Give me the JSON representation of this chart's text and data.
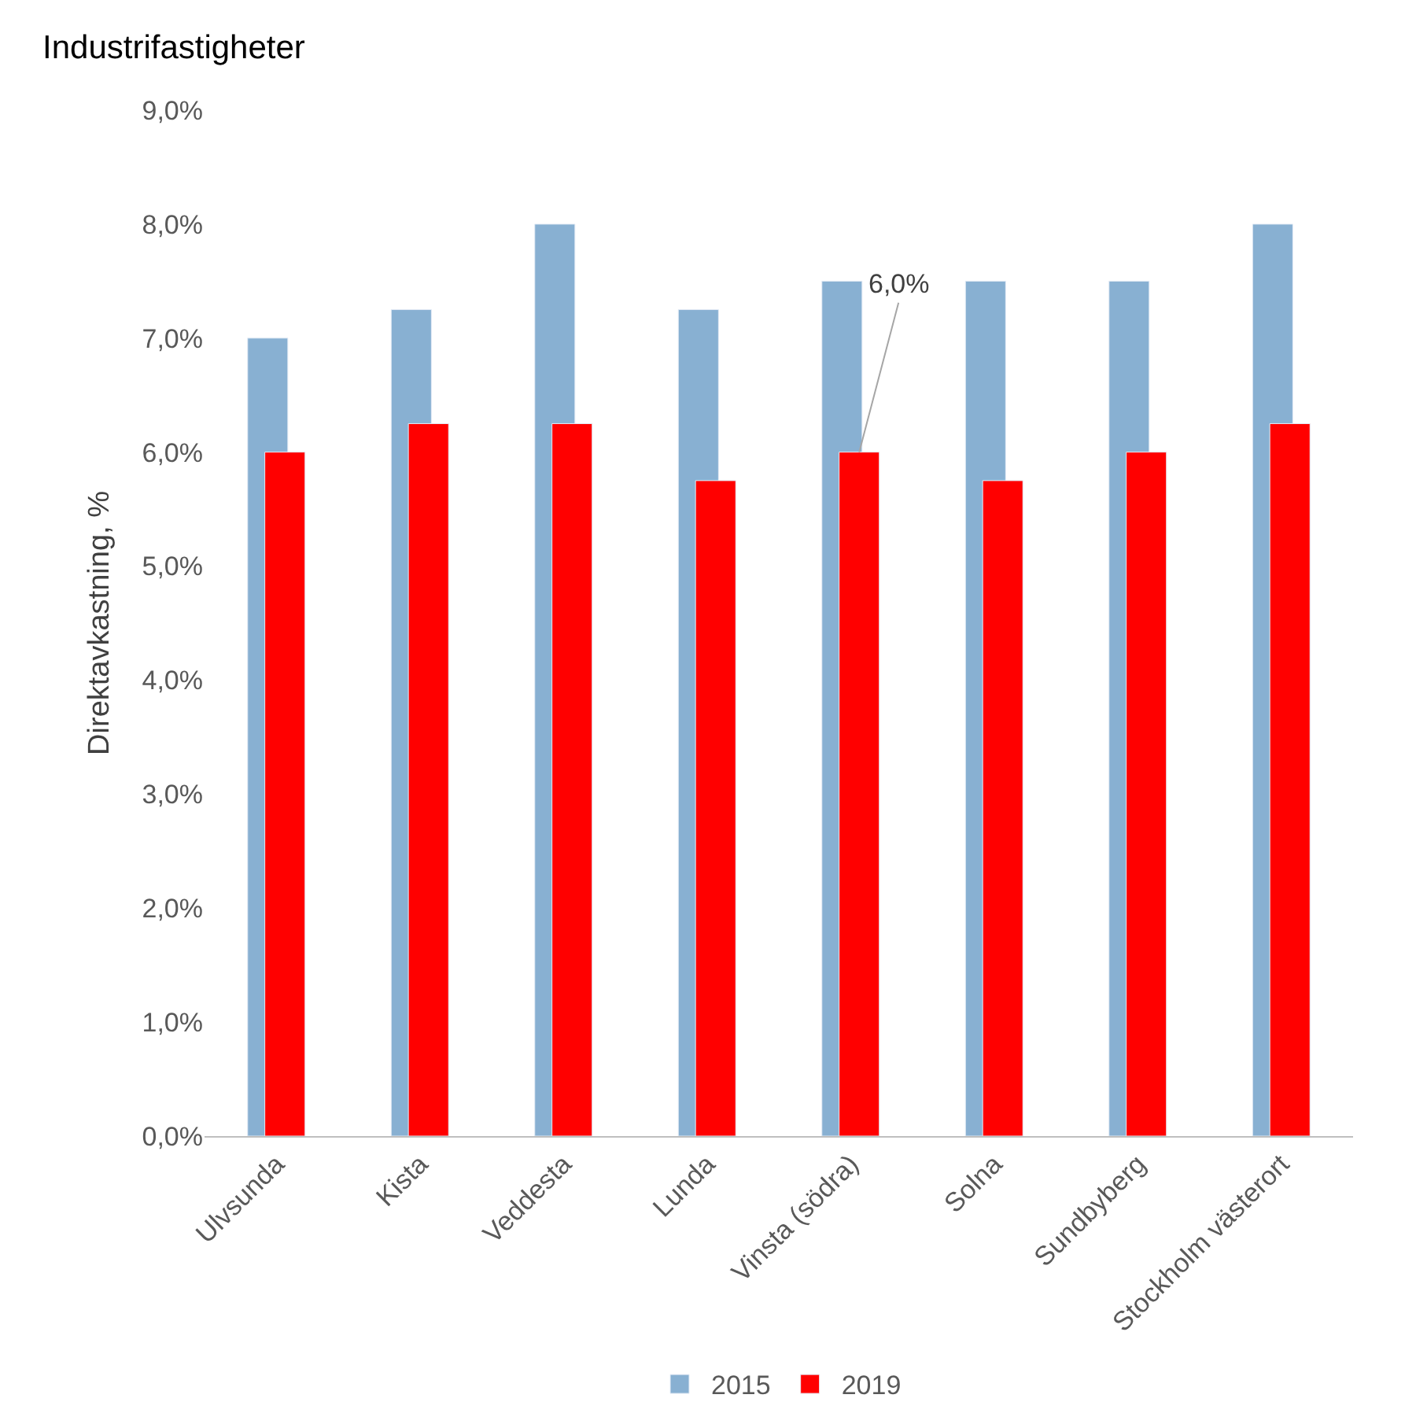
{
  "chart_data": {
    "type": "bar",
    "title": "Industrifastigheter",
    "ylabel": "Direktavkastning, %",
    "categories": [
      "Ulvsunda",
      "Kista",
      "Veddesta",
      "Lunda",
      "Vinsta (södra)",
      "Solna",
      "Sundbyberg",
      "Stockholm västerort"
    ],
    "series": [
      {
        "name": "2015",
        "color": "#88b0d2",
        "values": [
          7.0,
          7.25,
          8.0,
          7.25,
          7.5,
          7.5,
          7.5,
          8.0
        ]
      },
      {
        "name": "2019",
        "color": "#ff0000",
        "values": [
          6.0,
          6.25,
          6.25,
          5.75,
          6.0,
          5.75,
          6.0,
          6.25
        ]
      }
    ],
    "ylim": [
      0,
      9
    ],
    "yticks": [
      {
        "value": 0,
        "label": "0,0%"
      },
      {
        "value": 1,
        "label": "1,0%"
      },
      {
        "value": 2,
        "label": "2,0%"
      },
      {
        "value": 3,
        "label": "3,0%"
      },
      {
        "value": 4,
        "label": "4,0%"
      },
      {
        "value": 5,
        "label": "5,0%"
      },
      {
        "value": 6,
        "label": "6,0%"
      },
      {
        "value": 7,
        "label": "7,0%"
      },
      {
        "value": 8,
        "label": "8,0%"
      },
      {
        "value": 9,
        "label": "9,0%"
      }
    ],
    "annotations": [
      {
        "text": "6,0%",
        "x": "Vinsta (södra)",
        "y": 6.0
      }
    ],
    "legend": "bottom"
  }
}
